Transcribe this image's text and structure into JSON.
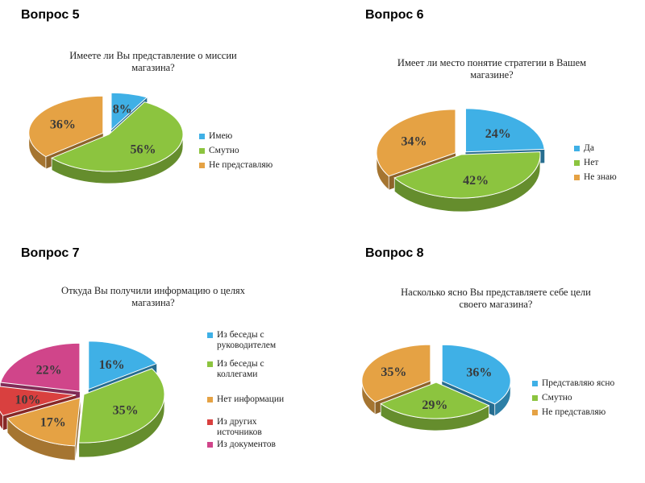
{
  "colors": {
    "blue": "#3fb0e6",
    "green": "#8cc43f",
    "orange": "#e5a244",
    "red": "#d9403f",
    "pink": "#d0458a"
  },
  "chart_data": [
    {
      "type": "pie",
      "heading": "Вопрос 5",
      "title": "Имеете ли Вы представление о миссии\nмагазина?",
      "slices": [
        {
          "label": "Имею",
          "value": 8,
          "display": "8%",
          "color": "#3fb0e6"
        },
        {
          "label": "Смутно",
          "value": 56,
          "display": "56%",
          "color": "#8cc43f"
        },
        {
          "label": "Не представляю",
          "value": 36,
          "display": "36%",
          "color": "#e5a244"
        }
      ],
      "legend_position": "right"
    },
    {
      "type": "pie",
      "heading": "Вопрос 6",
      "title": "Имеет ли место понятие стратегии в Вашем\nмагазине?",
      "slices": [
        {
          "label": "Да",
          "value": 24,
          "display": "24%",
          "color": "#3fb0e6"
        },
        {
          "label": "Нет",
          "value": 42,
          "display": "42%",
          "color": "#8cc43f"
        },
        {
          "label": "Не знаю",
          "value": 34,
          "display": "34%",
          "color": "#e5a244"
        }
      ],
      "legend_position": "right"
    },
    {
      "type": "pie",
      "heading": "Вопрос 7",
      "title": "Откуда Вы получили информацию о целях\nмагазина?",
      "slices": [
        {
          "label": "Из беседы с\nруководителем",
          "value": 16,
          "display": "16%",
          "color": "#3fb0e6"
        },
        {
          "label": "Из беседы с\nколлегами",
          "value": 35,
          "display": "35%",
          "color": "#8cc43f"
        },
        {
          "label": "Нет информации",
          "value": 17,
          "display": "17%",
          "color": "#e5a244"
        },
        {
          "label": "Из других\nисточников",
          "value": 10,
          "display": "10%",
          "color": "#d9403f"
        },
        {
          "label": "Из документов",
          "value": 22,
          "display": "22%",
          "color": "#d0458a"
        }
      ],
      "legend_position": "right"
    },
    {
      "type": "pie",
      "heading": "Вопрос  8",
      "title": "Насколько ясно Вы представляете себе цели\nсвоего магазина?",
      "slices": [
        {
          "label": "Представляю ясно",
          "value": 36,
          "display": "36%",
          "color": "#3fb0e6"
        },
        {
          "label": "Смутно",
          "value": 29,
          "display": "29%",
          "color": "#8cc43f"
        },
        {
          "label": "Не представляю",
          "value": 35,
          "display": "35%",
          "color": "#e5a244"
        }
      ],
      "legend_position": "right"
    }
  ]
}
